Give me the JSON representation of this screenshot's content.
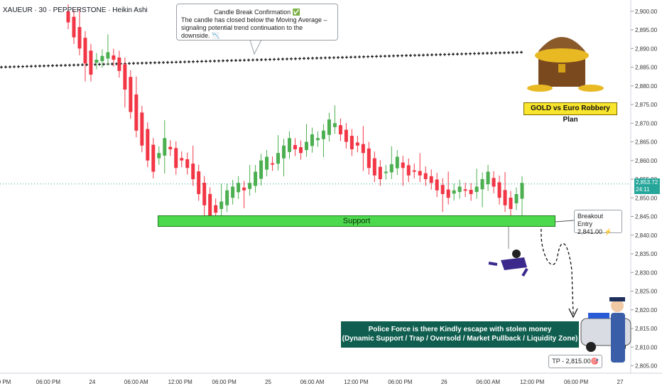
{
  "header": {
    "symbol_line": "XAUEUR · 30 · PEPPERSTONE · Heikin Ashi"
  },
  "callout": {
    "title": "Candle Break Confirmation ✅",
    "body": "The candle has closed below the Moving Average – signaling potential trend continuation to the downside. 📉"
  },
  "annotations": {
    "support_label": "Support",
    "breakout_title": "Breakout Entry",
    "breakout_value": "2,841.00 ⚡",
    "plan_label": "GOLD vs Euro Robbery Plan",
    "police_line1": "Police Force is there Kindly escape with stolen money",
    "police_line2": "(Dynamic Support / Trap / Oversold / Market Pullback / Liquidity Zone)",
    "tp_label": "TP - 2,815.00🎯"
  },
  "price_tag": {
    "price": "2,853.72",
    "timer": "24:11"
  },
  "colors": {
    "up": "#4caf50",
    "down": "#f23645",
    "ma": "#111111",
    "support_fill": "#4dd94d",
    "plan_fill": "#f9e52d",
    "police_fill": "#0f5e4f"
  },
  "chart_data": {
    "type": "candlestick",
    "series_style": "Heikin Ashi",
    "y_axis": {
      "ylim": [
        2803,
        2903
      ],
      "tick_labels": [
        "2,900.00",
        "2,895.00",
        "2,890.00",
        "2,885.00",
        "2,880.00",
        "2,875.00",
        "2,870.00",
        "2,865.00",
        "2,860.00",
        "2,855.00",
        "2,850.00",
        "2,845.00",
        "2,840.00",
        "2,835.00",
        "2,830.00",
        "2,825.00",
        "2,820.00",
        "2,815.00",
        "2,810.00",
        "2,805.00"
      ],
      "tick_values": [
        2900,
        2895,
        2890,
        2885,
        2880,
        2875,
        2870,
        2865,
        2860,
        2855,
        2850,
        2845,
        2840,
        2835,
        2830,
        2825,
        2820,
        2815,
        2810,
        2805
      ]
    },
    "x_axis": {
      "tick_labels": [
        "0 PM",
        "06:00 PM",
        "24",
        "06:00 AM",
        "12:00 PM",
        "06:00 PM",
        "25",
        "06:00 AM",
        "12:00 PM",
        "06:00 PM",
        "26",
        "06:00 AM",
        "12:00 PM",
        "06:00 PM",
        "27"
      ]
    },
    "candles_close": [
      2897,
      2893,
      2890,
      2886,
      2883,
      2887,
      2888,
      2889,
      2887,
      2884,
      2879,
      2873,
      2868,
      2864,
      2860,
      2857,
      2862,
      2866,
      2863,
      2858,
      2860,
      2858,
      2855,
      2851,
      2848,
      2845,
      2846,
      2849,
      2852,
      2853,
      2854,
      2852,
      2854,
      2857,
      2860,
      2861,
      2859,
      2862,
      2864,
      2866,
      2863,
      2862,
      2865,
      2867,
      2866,
      2868,
      2871,
      2870,
      2867,
      2865,
      2863,
      2864,
      2862,
      2858,
      2856,
      2855,
      2857,
      2859,
      2861,
      2858,
      2856,
      2857,
      2856,
      2855,
      2854,
      2852,
      2851,
      2850,
      2852,
      2853,
      2852,
      2851,
      2853,
      2855,
      2857,
      2853,
      2850,
      2848,
      2847,
      2851,
      2854
    ],
    "moving_average": {
      "start": 2885,
      "end": 2889
    },
    "levels": {
      "support_top": 2844,
      "support_bottom": 2841,
      "breakout_entry": 2841.0,
      "take_profit": 2815.0,
      "current_price": 2853.72
    }
  }
}
